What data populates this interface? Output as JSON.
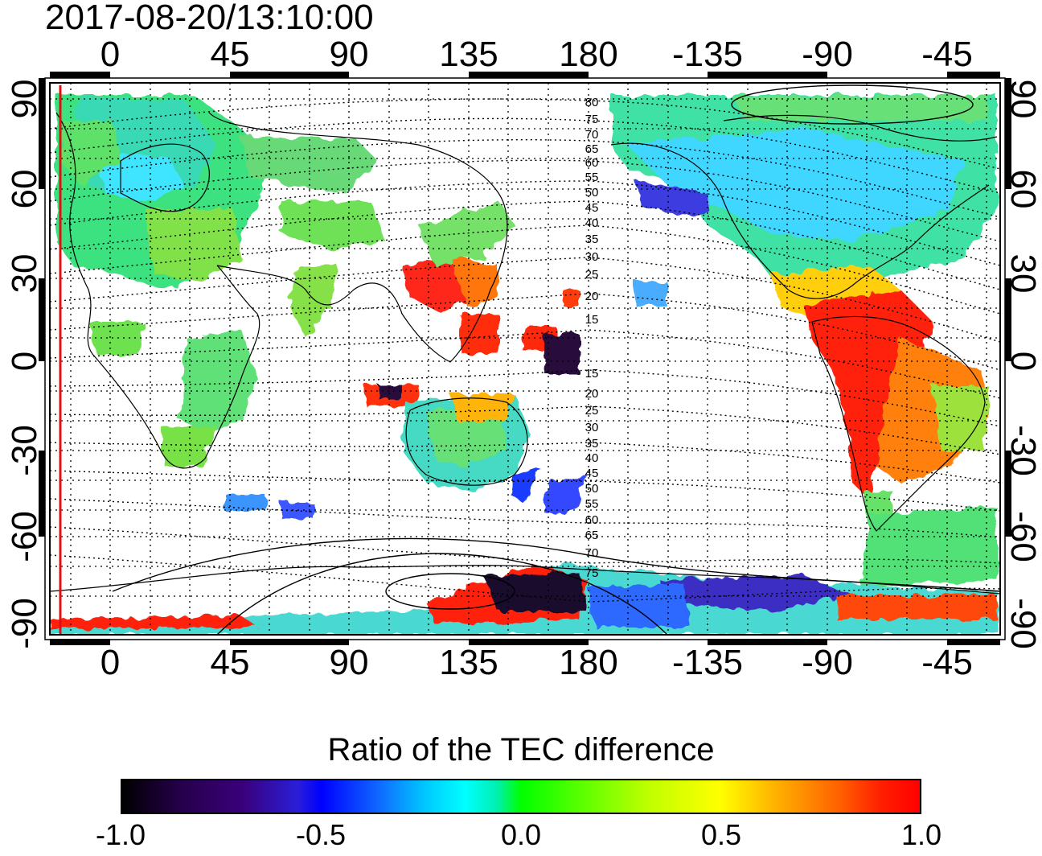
{
  "title": "2017-08-20/13:10:00",
  "top_lon_labels": [
    "0",
    "45",
    "90",
    "135",
    "180",
    "-135",
    "-90",
    "-45"
  ],
  "bottom_lon_labels": [
    "0",
    "45",
    "90",
    "135",
    "180",
    "-135",
    "-90",
    "-45"
  ],
  "left_lat_labels": [
    "90",
    "60",
    "30",
    "0",
    "-30",
    "-60",
    "-90"
  ],
  "right_lat_labels": [
    "90",
    "60",
    "30",
    "0",
    "-30",
    "-60",
    "-90"
  ],
  "contour_labels": [
    "80",
    "75",
    "70",
    "65",
    "60",
    "55",
    "50",
    "45",
    "40",
    "35",
    "30",
    "25",
    "20",
    "15",
    "15",
    "20",
    "25",
    "30",
    "35",
    "40",
    "45",
    "50",
    "55",
    "60",
    "65",
    "70",
    "75"
  ],
  "colorbar": {
    "title": "Ratio of the TEC difference",
    "ticks": [
      "-1.0",
      "-0.5",
      "0.0",
      "0.5",
      "1.0"
    ],
    "min": -1.0,
    "max": 1.0,
    "colors": [
      "#000000",
      "#0000ff",
      "#00ffff",
      "#00ff00",
      "#ffff00",
      "#ff0000"
    ]
  },
  "colors": {
    "coastline": "#000000",
    "terminator_marker": "#ff0000",
    "background": "#ffffff"
  }
}
